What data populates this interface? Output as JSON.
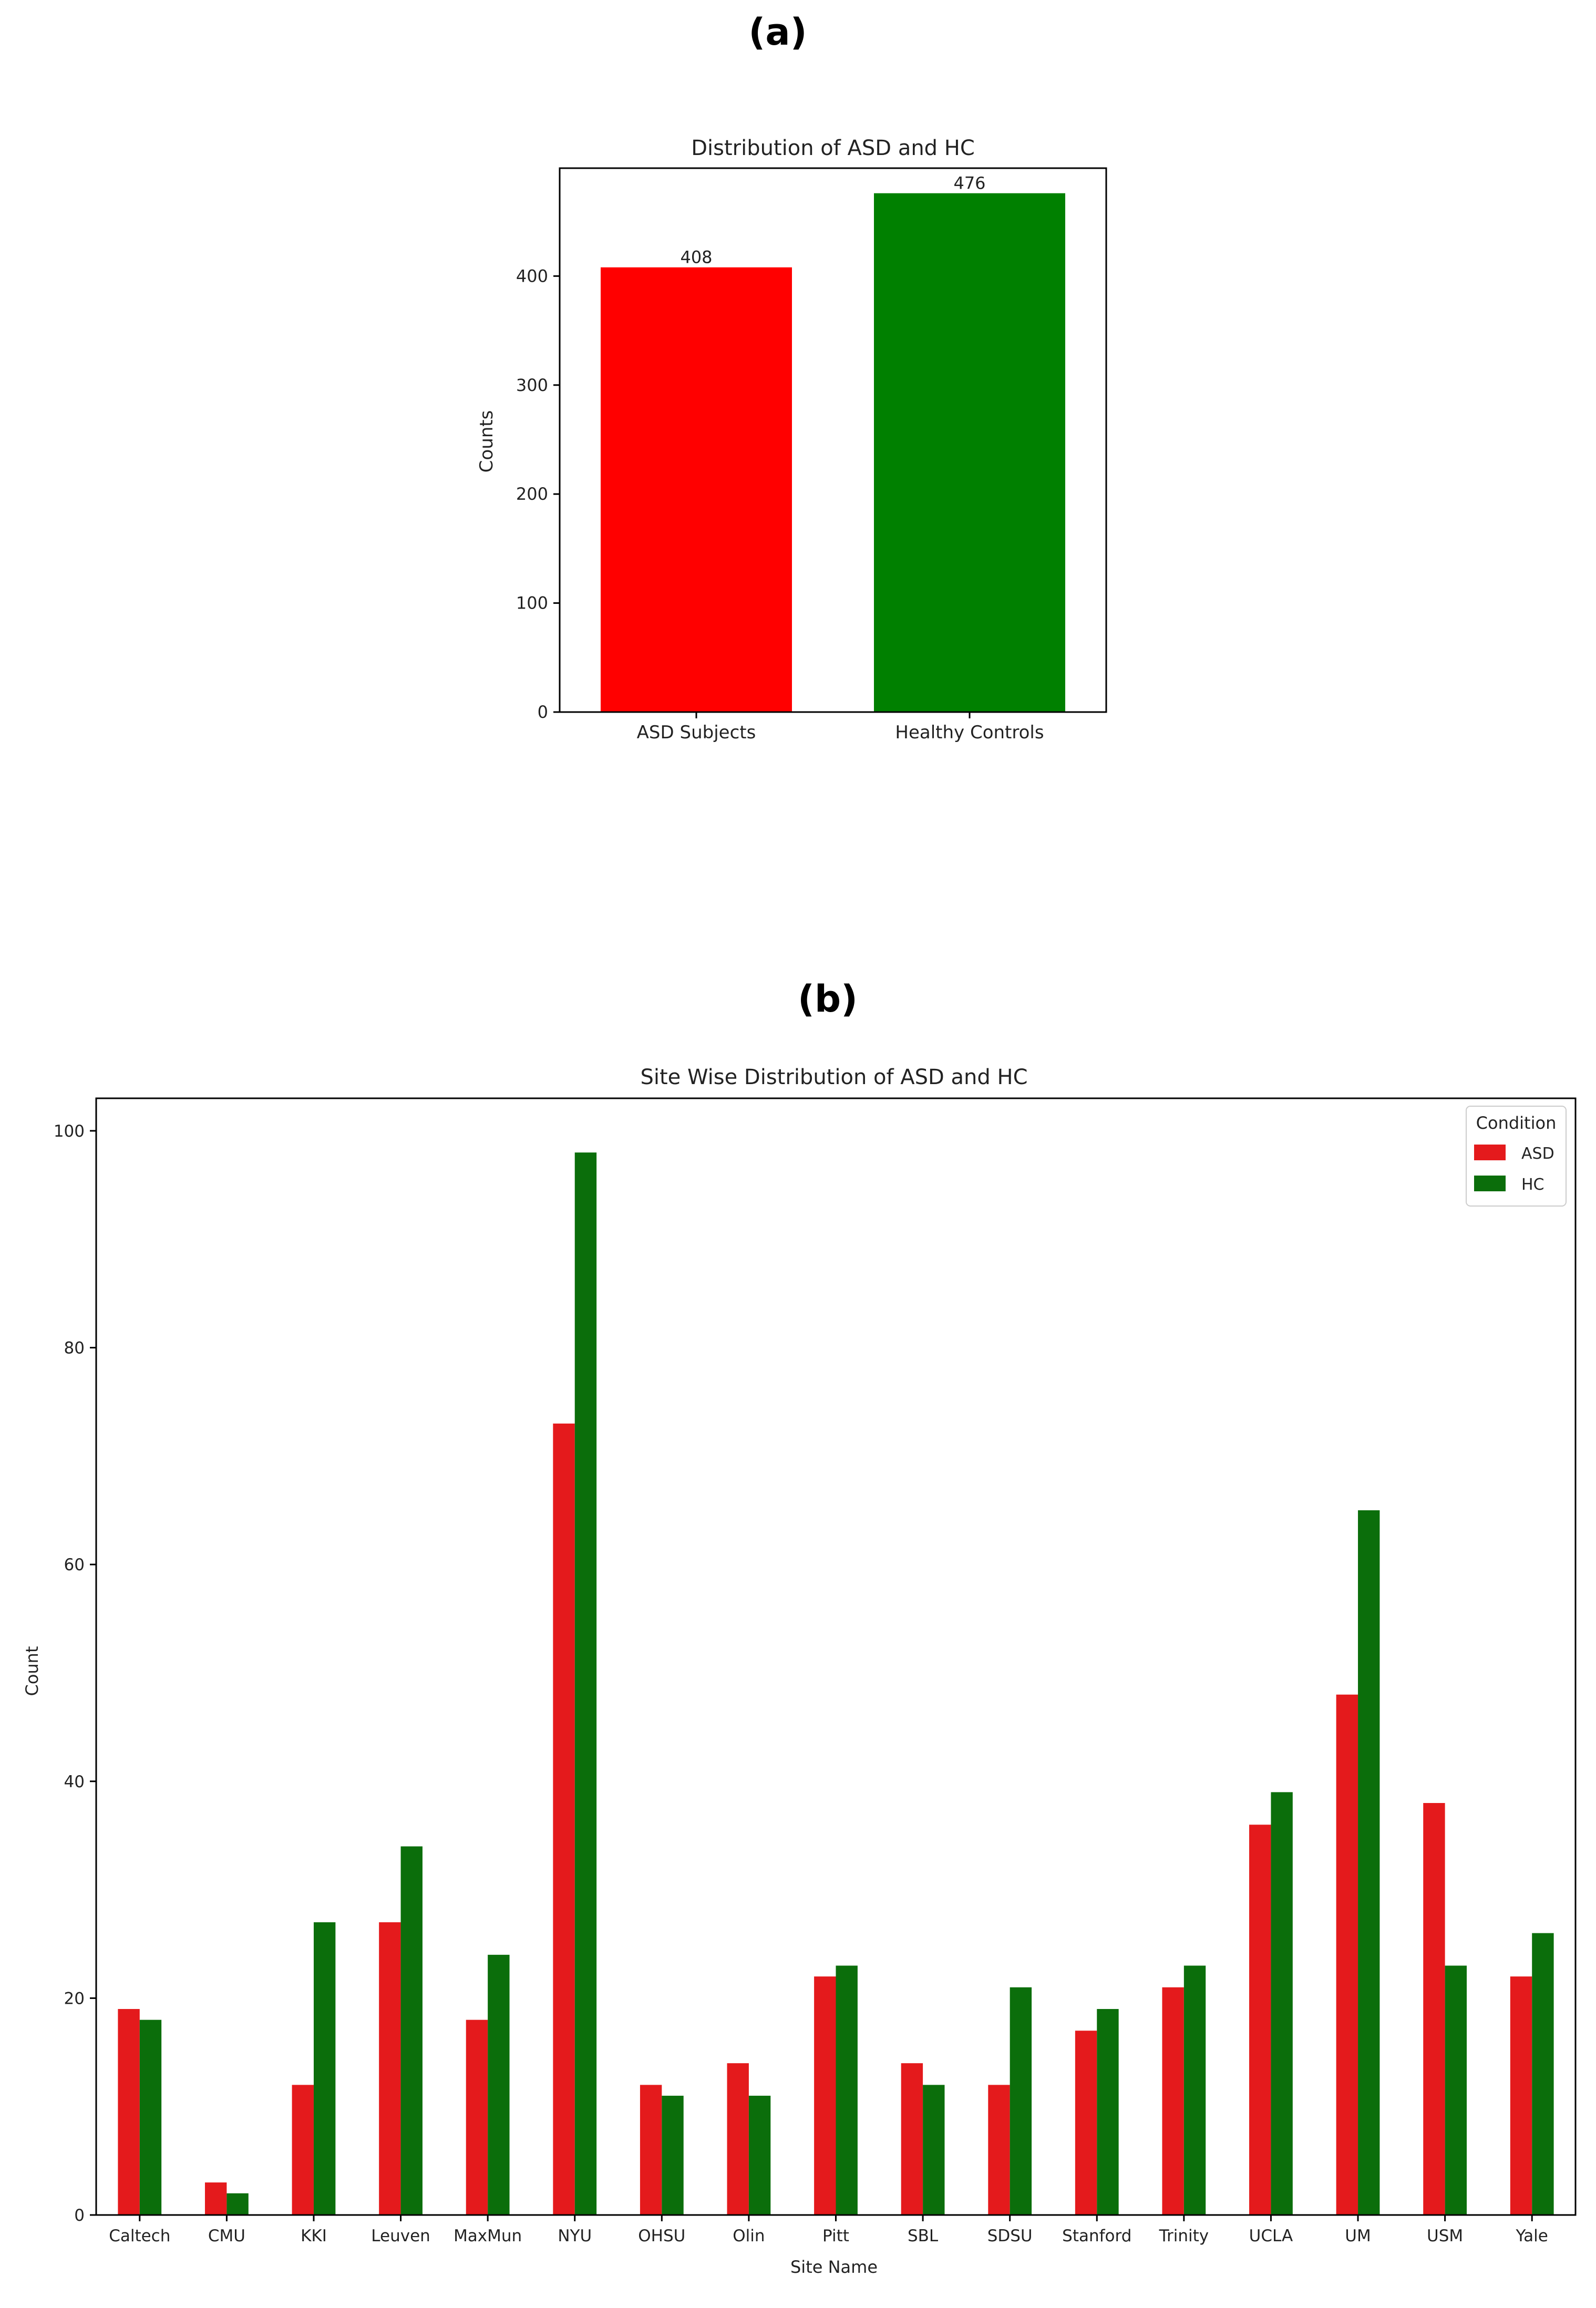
{
  "panels": {
    "a_label": "(a)",
    "b_label": "(b)"
  },
  "chart_data": [
    {
      "type": "bar",
      "title": "Distribution of ASD and HC",
      "xlabel": "",
      "ylabel": "Counts",
      "categories": [
        "ASD Subjects",
        "Healthy Controls"
      ],
      "values": [
        408,
        476
      ],
      "data_labels": [
        "408",
        "476"
      ],
      "colors": [
        "#ff0000",
        "#008000"
      ],
      "ylim": [
        0,
        499
      ],
      "yticks": [
        0,
        100,
        200,
        300,
        400
      ],
      "grid": false
    },
    {
      "type": "bar",
      "title": "Site Wise Distribution of ASD and HC",
      "xlabel": "Site Name",
      "ylabel": "Count",
      "categories": [
        "Caltech",
        "CMU",
        "KKI",
        "Leuven",
        "MaxMun",
        "NYU",
        "OHSU",
        "Olin",
        "Pitt",
        "SBL",
        "SDSU",
        "Stanford",
        "Trinity",
        "UCLA",
        "UM",
        "USM",
        "Yale"
      ],
      "series": [
        {
          "name": "ASD",
          "color": "#e41a1c",
          "values": [
            19,
            3,
            12,
            27,
            18,
            73,
            12,
            14,
            22,
            14,
            12,
            17,
            21,
            36,
            48,
            38,
            22
          ]
        },
        {
          "name": "HC",
          "color": "#0b6e0b",
          "values": [
            18,
            2,
            27,
            34,
            24,
            98,
            11,
            11,
            23,
            12,
            21,
            19,
            23,
            39,
            65,
            23,
            26
          ]
        }
      ],
      "legend_title": "Condition",
      "legend_position": "top-right",
      "ylim": [
        0,
        103
      ],
      "yticks": [
        0,
        20,
        40,
        60,
        80,
        100
      ],
      "grid": false
    }
  ]
}
